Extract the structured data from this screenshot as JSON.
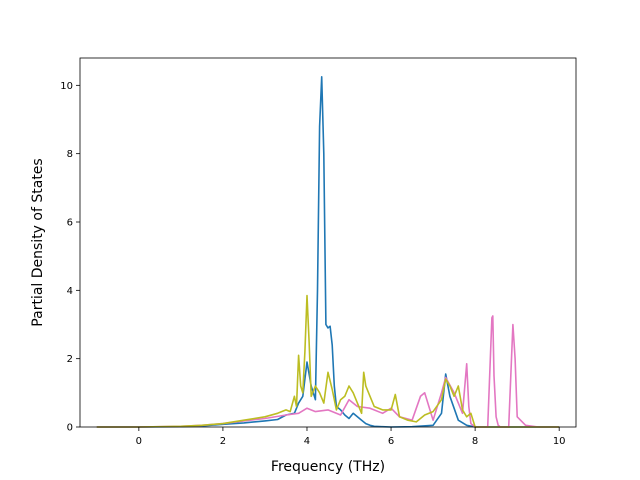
{
  "chart_data": {
    "type": "line",
    "title": "",
    "xlabel": "Frequency (THz)",
    "ylabel": "Partial Density of States",
    "xlim": [
      -1.4,
      10.4
    ],
    "ylim": [
      0,
      10.8
    ],
    "xticks": [
      0,
      2,
      4,
      6,
      8,
      10
    ],
    "yticks": [
      0,
      2,
      4,
      6,
      8,
      10
    ],
    "grid": false,
    "legend": "none",
    "series": [
      {
        "color": "#1f77b4",
        "x": [
          -1.0,
          0.0,
          1.0,
          1.5,
          2.0,
          2.5,
          3.0,
          3.3,
          3.5,
          3.7,
          3.8,
          3.9,
          4.0,
          4.1,
          4.2,
          4.25,
          4.3,
          4.35,
          4.4,
          4.45,
          4.5,
          4.55,
          4.6,
          4.65,
          4.7,
          4.8,
          4.9,
          5.0,
          5.1,
          5.2,
          5.3,
          5.4,
          5.5,
          5.6,
          5.8,
          6.0,
          6.5,
          7.0,
          7.2,
          7.3,
          7.4,
          7.6,
          7.8,
          8.0,
          8.5,
          9.0,
          9.5,
          10.0
        ],
        "y": [
          0,
          0,
          0.01,
          0.03,
          0.08,
          0.12,
          0.18,
          0.22,
          0.35,
          0.4,
          0.7,
          0.9,
          1.9,
          1.2,
          0.8,
          4.0,
          8.8,
          10.25,
          8.0,
          3.0,
          2.9,
          2.95,
          2.4,
          1.2,
          0.6,
          0.5,
          0.35,
          0.25,
          0.4,
          0.3,
          0.2,
          0.1,
          0.05,
          0.02,
          0.01,
          0.0,
          0.01,
          0.05,
          0.4,
          1.55,
          0.9,
          0.2,
          0.05,
          0.0,
          0.0,
          0.0,
          0.0,
          0.0
        ]
      },
      {
        "color": "#e377c2",
        "x": [
          -1.0,
          0.0,
          1.0,
          1.5,
          2.0,
          2.5,
          3.0,
          3.5,
          3.8,
          4.0,
          4.2,
          4.5,
          4.8,
          5.0,
          5.2,
          5.5,
          5.8,
          6.0,
          6.2,
          6.5,
          6.7,
          6.8,
          6.9,
          7.0,
          7.2,
          7.3,
          7.5,
          7.7,
          7.8,
          7.85,
          7.9,
          8.0,
          8.3,
          8.4,
          8.42,
          8.45,
          8.5,
          8.55,
          8.6,
          8.8,
          8.85,
          8.9,
          8.95,
          9.0,
          9.2,
          9.5,
          10.0
        ],
        "y": [
          0,
          0,
          0.02,
          0.05,
          0.1,
          0.18,
          0.25,
          0.35,
          0.4,
          0.55,
          0.45,
          0.5,
          0.35,
          0.8,
          0.6,
          0.55,
          0.4,
          0.55,
          0.3,
          0.2,
          0.9,
          1.0,
          0.6,
          0.2,
          1.0,
          1.45,
          1.0,
          0.4,
          1.85,
          0.6,
          0.1,
          0.0,
          0.0,
          3.2,
          3.25,
          1.5,
          0.3,
          0.05,
          0.0,
          0.0,
          1.5,
          3.0,
          2.0,
          0.3,
          0.05,
          0.0,
          0.0
        ]
      },
      {
        "color": "#bcbd22",
        "x": [
          -1.0,
          0.0,
          1.0,
          1.5,
          2.0,
          2.5,
          3.0,
          3.3,
          3.5,
          3.6,
          3.7,
          3.75,
          3.8,
          3.85,
          3.9,
          3.95,
          4.0,
          4.05,
          4.1,
          4.2,
          4.3,
          4.4,
          4.5,
          4.6,
          4.7,
          4.8,
          4.9,
          5.0,
          5.1,
          5.2,
          5.3,
          5.35,
          5.4,
          5.5,
          5.6,
          5.8,
          6.0,
          6.1,
          6.2,
          6.4,
          6.6,
          6.8,
          7.0,
          7.2,
          7.3,
          7.4,
          7.5,
          7.6,
          7.7,
          7.8,
          7.9,
          8.0,
          9.0,
          10.0
        ],
        "y": [
          0,
          0,
          0.02,
          0.05,
          0.1,
          0.2,
          0.3,
          0.4,
          0.5,
          0.45,
          0.9,
          0.6,
          2.1,
          1.2,
          1.0,
          2.2,
          3.85,
          2.5,
          0.9,
          1.2,
          1.0,
          0.7,
          1.6,
          1.1,
          0.5,
          0.8,
          0.9,
          1.2,
          1.0,
          0.7,
          0.4,
          1.6,
          1.2,
          0.9,
          0.6,
          0.5,
          0.5,
          0.95,
          0.3,
          0.2,
          0.15,
          0.35,
          0.45,
          0.8,
          1.4,
          1.2,
          0.9,
          1.2,
          0.5,
          0.3,
          0.4,
          0.0,
          0.0,
          0.0
        ]
      }
    ]
  }
}
